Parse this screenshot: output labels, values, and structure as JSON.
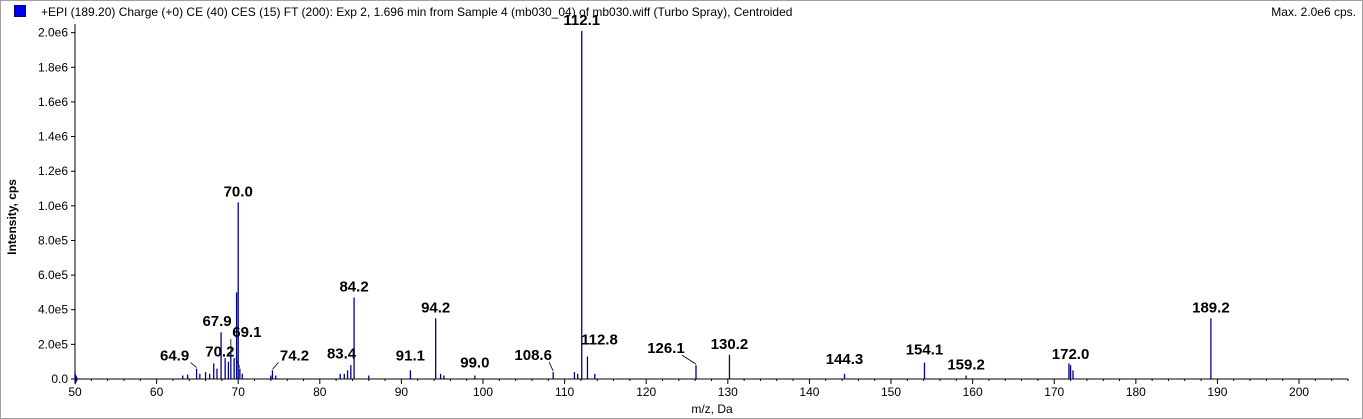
{
  "header": {
    "title": "+EPI (189.20) Charge (+0) CE (40) CES (15) FT (200): Exp 2, 1.696 min from Sample 4 (mb030_04) of mb030.wiff (Turbo Spray), Centroided",
    "max": "Max. 2.0e6 cps."
  },
  "colors": {
    "series": "#00008b",
    "swatch": "#0000ee",
    "axis": "#000000"
  },
  "chart_data": {
    "type": "bar",
    "xlabel": "m/z, Da",
    "ylabel": "Intensity, cps",
    "xlim": [
      50,
      206
    ],
    "ylim": [
      0,
      2050000.0
    ],
    "x_ticks": [
      50,
      60,
      70,
      80,
      90,
      100,
      110,
      120,
      130,
      140,
      150,
      160,
      170,
      180,
      190,
      200
    ],
    "y_ticks": [
      {
        "value": 0,
        "label": "0.0"
      },
      {
        "value": 200000,
        "label": "2.0e5"
      },
      {
        "value": 400000,
        "label": "4.0e5"
      },
      {
        "value": 600000,
        "label": "6.0e5"
      },
      {
        "value": 800000,
        "label": "8.0e5"
      },
      {
        "value": 1000000,
        "label": "1.0e6"
      },
      {
        "value": 1200000,
        "label": "1.2e6"
      },
      {
        "value": 1400000,
        "label": "1.4e6"
      },
      {
        "value": 1600000,
        "label": "1.6e6"
      },
      {
        "value": 1800000,
        "label": "1.8e6"
      },
      {
        "value": 2000000,
        "label": "2.0e6"
      }
    ],
    "peaks": [
      {
        "x": 50.0,
        "y": 40000
      },
      {
        "x": 63.2,
        "y": 20000
      },
      {
        "x": 63.8,
        "y": 25000
      },
      {
        "x": 64.9,
        "y": 60000
      },
      {
        "x": 65.3,
        "y": 30000
      },
      {
        "x": 66.0,
        "y": 40000
      },
      {
        "x": 66.5,
        "y": 30000
      },
      {
        "x": 67.0,
        "y": 90000
      },
      {
        "x": 67.4,
        "y": 60000
      },
      {
        "x": 67.9,
        "y": 270000
      },
      {
        "x": 68.4,
        "y": 120000
      },
      {
        "x": 68.8,
        "y": 100000
      },
      {
        "x": 69.1,
        "y": 150000
      },
      {
        "x": 69.5,
        "y": 120000
      },
      {
        "x": 69.8,
        "y": 500000
      },
      {
        "x": 70.0,
        "y": 1020000
      },
      {
        "x": 70.2,
        "y": 60000
      },
      {
        "x": 70.5,
        "y": 30000
      },
      {
        "x": 74.0,
        "y": 20000
      },
      {
        "x": 74.2,
        "y": 50000
      },
      {
        "x": 74.6,
        "y": 20000
      },
      {
        "x": 82.5,
        "y": 30000
      },
      {
        "x": 83.0,
        "y": 30000
      },
      {
        "x": 83.4,
        "y": 50000
      },
      {
        "x": 83.8,
        "y": 80000
      },
      {
        "x": 84.2,
        "y": 470000
      },
      {
        "x": 86.0,
        "y": 20000
      },
      {
        "x": 91.1,
        "y": 50000
      },
      {
        "x": 94.2,
        "y": 350000
      },
      {
        "x": 94.8,
        "y": 30000
      },
      {
        "x": 95.2,
        "y": 20000
      },
      {
        "x": 99.0,
        "y": 20000
      },
      {
        "x": 108.6,
        "y": 40000
      },
      {
        "x": 111.2,
        "y": 40000
      },
      {
        "x": 111.6,
        "y": 30000
      },
      {
        "x": 112.1,
        "y": 2010000
      },
      {
        "x": 112.8,
        "y": 130000
      },
      {
        "x": 113.7,
        "y": 30000
      },
      {
        "x": 126.1,
        "y": 80000
      },
      {
        "x": 130.2,
        "y": 140000
      },
      {
        "x": 144.3,
        "y": 30000
      },
      {
        "x": 154.1,
        "y": 95000
      },
      {
        "x": 159.2,
        "y": 20000
      },
      {
        "x": 171.8,
        "y": 90000
      },
      {
        "x": 172.0,
        "y": 80000
      },
      {
        "x": 172.3,
        "y": 50000
      },
      {
        "x": 189.2,
        "y": 350000
      }
    ],
    "annotations": [
      {
        "label": "112.1",
        "x": 112.1,
        "y": 2010000
      },
      {
        "label": "70.0",
        "x": 70.0,
        "y": 1020000
      },
      {
        "label": "84.2",
        "x": 84.2,
        "y": 470000
      },
      {
        "label": "94.2",
        "x": 94.2,
        "y": 350000
      },
      {
        "label": "189.2",
        "x": 189.2,
        "y": 350000
      },
      {
        "label": "67.9",
        "x": 67.9,
        "y": 270000
      },
      {
        "label": "69.1",
        "x": 69.1,
        "y": 150000
      },
      {
        "label": "130.2",
        "x": 130.2,
        "y": 140000
      },
      {
        "label": "112.8",
        "x": 112.8,
        "y": 130000
      },
      {
        "label": "64.9",
        "x": 64.9,
        "y": 60000
      },
      {
        "label": "70.2",
        "x": 70.2,
        "y": 60000
      },
      {
        "label": "74.2",
        "x": 74.2,
        "y": 50000
      },
      {
        "label": "83.4",
        "x": 83.4,
        "y": 50000
      },
      {
        "label": "91.1",
        "x": 91.1,
        "y": 50000
      },
      {
        "label": "99.0",
        "x": 99.0,
        "y": 20000
      },
      {
        "label": "108.6",
        "x": 108.6,
        "y": 40000
      },
      {
        "label": "126.1",
        "x": 126.1,
        "y": 80000
      },
      {
        "label": "144.3",
        "x": 144.3,
        "y": 30000
      },
      {
        "label": "154.1",
        "x": 154.1,
        "y": 95000
      },
      {
        "label": "159.2",
        "x": 159.2,
        "y": 20000
      },
      {
        "label": "172.0",
        "x": 172.0,
        "y": 80000
      }
    ]
  }
}
